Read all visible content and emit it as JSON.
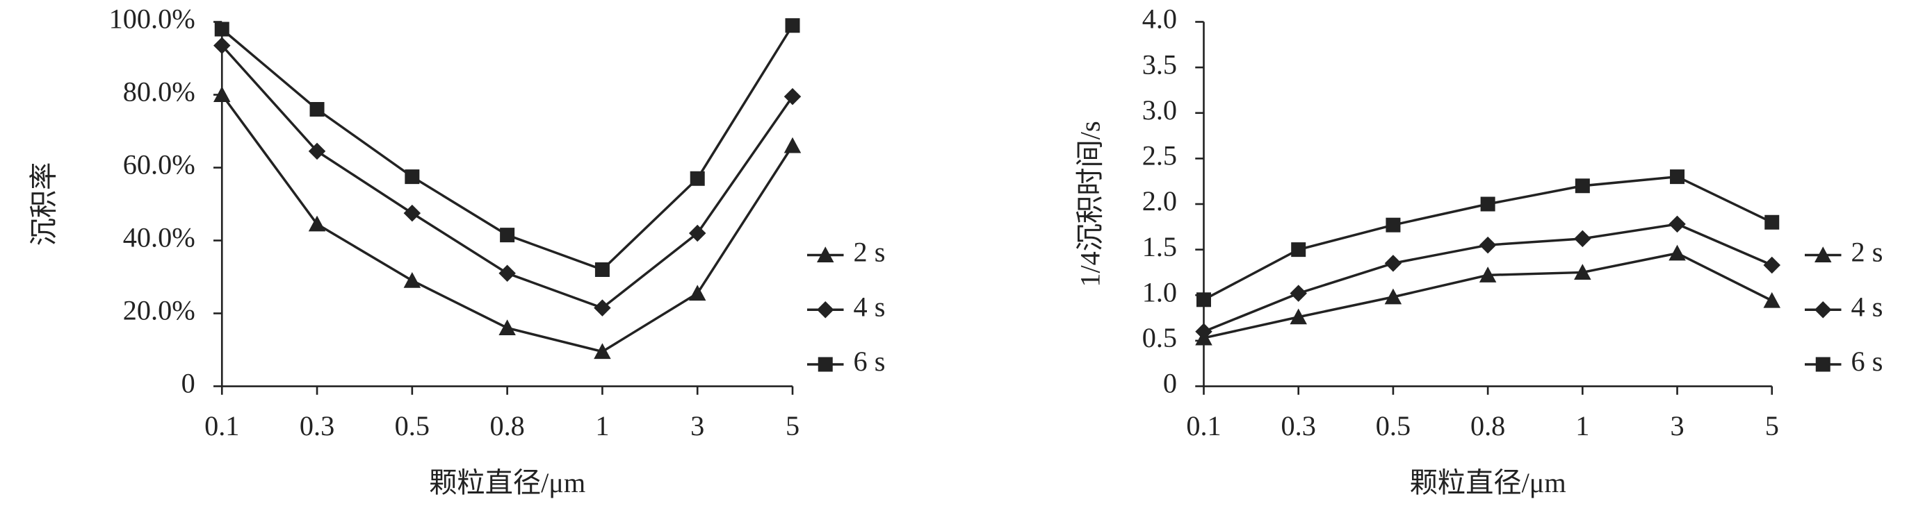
{
  "chart_data": [
    {
      "type": "line",
      "ylabel": "沉积率",
      "xlabel": "颗粒直径/μm",
      "categories": [
        "0.1",
        "0.3",
        "0.5",
        "0.8",
        "1",
        "3",
        "5"
      ],
      "ylim": [
        0,
        100
      ],
      "yticks": [
        0,
        {
          "value": 20,
          "label": "20.0%"
        },
        {
          "value": 40,
          "label": "40.0%"
        },
        {
          "value": 60,
          "label": "60.0%"
        },
        {
          "value": 80,
          "label": "80.0%"
        },
        {
          "value": 100,
          "label": "100.0%"
        }
      ],
      "legend": "right",
      "series": [
        {
          "name": "2 s",
          "color": "#222222",
          "marker": "triangle",
          "values": [
            80,
            44.5,
            29,
            16,
            9.5,
            25.5,
            66
          ]
        },
        {
          "name": "4 s",
          "color": "#222222",
          "marker": "diamond",
          "values": [
            93.5,
            64.5,
            47.5,
            31,
            21.5,
            42,
            79.5
          ]
        },
        {
          "name": "6 s",
          "color": "#222222",
          "marker": "square",
          "values": [
            98,
            76,
            57.5,
            41.5,
            32,
            57,
            99
          ]
        }
      ]
    },
    {
      "type": "line",
      "ylabel": "1/4沉积时间/s",
      "xlabel": "颗粒直径/μm",
      "categories": [
        "0.1",
        "0.3",
        "0.5",
        "0.8",
        "1",
        "3",
        "5"
      ],
      "ylim": [
        0,
        4
      ],
      "yticks": [
        0,
        0.5,
        {
          "value": 1,
          "label": "1.0"
        },
        1.5,
        {
          "value": 2,
          "label": "2.0"
        },
        2.5,
        {
          "value": 3,
          "label": "3.0"
        },
        3.5,
        {
          "value": 4,
          "label": "4.0"
        }
      ],
      "legend": "right",
      "series": [
        {
          "name": "2 s",
          "color": "#222222",
          "marker": "triangle",
          "values": [
            0.53,
            0.76,
            0.98,
            1.22,
            1.25,
            1.46,
            0.94
          ]
        },
        {
          "name": "4 s",
          "color": "#222222",
          "marker": "diamond",
          "values": [
            0.6,
            1.02,
            1.35,
            1.55,
            1.62,
            1.78,
            1.33
          ]
        },
        {
          "name": "6 s",
          "color": "#222222",
          "marker": "square",
          "values": [
            0.95,
            1.5,
            1.77,
            2.0,
            2.2,
            2.3,
            1.8
          ]
        }
      ]
    }
  ]
}
